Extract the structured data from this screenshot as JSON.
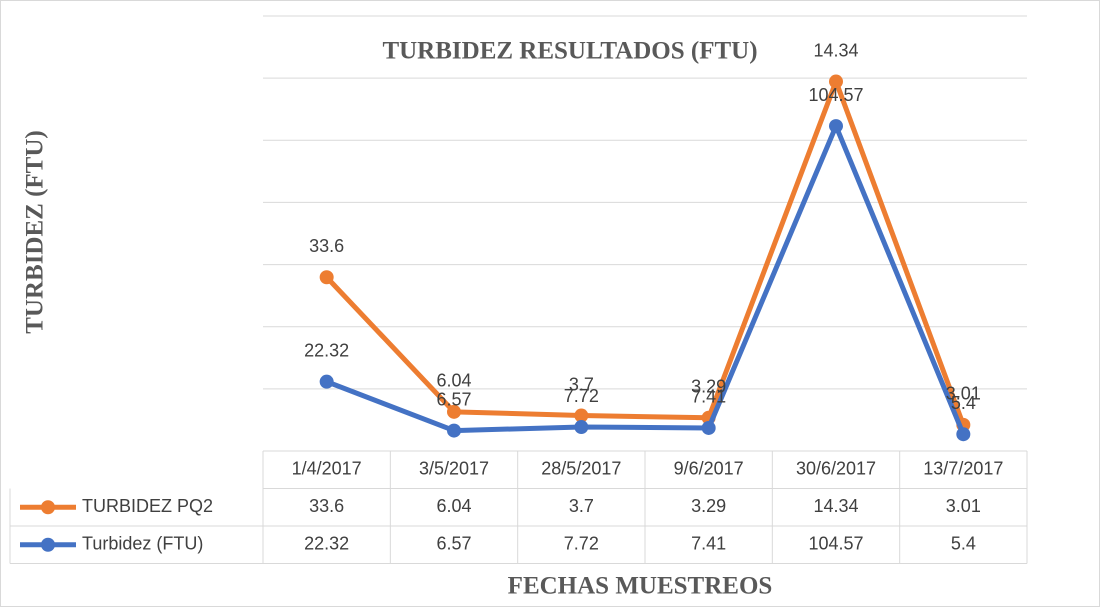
{
  "chart_data": {
    "type": "line",
    "stacked": true,
    "title": "TURBIDEZ RESULTADOS (FTU)",
    "y_label": "TURBIDEZ (FTU)",
    "x_label": "FECHAS MUESTREOS",
    "categories": [
      "1/4/2017",
      "3/5/2017",
      "28/5/2017",
      "9/6/2017",
      "30/6/2017",
      "13/7/2017"
    ],
    "series": [
      {
        "name": "TURBIDEZ PQ2",
        "color": "#ED7D31",
        "values": [
          33.6,
          6.04,
          3.7,
          3.29,
          14.34,
          3.01
        ]
      },
      {
        "name": "Turbidez (FTU)",
        "color": "#4472C4",
        "values": [
          22.32,
          6.57,
          7.72,
          7.41,
          104.57,
          5.4
        ]
      }
    ],
    "ylim": [
      0,
      140
    ],
    "yticks": [
      0,
      20,
      40,
      60,
      80,
      100,
      120,
      140
    ],
    "ytick_labels_visible": false,
    "grid": true,
    "data_table": true
  }
}
